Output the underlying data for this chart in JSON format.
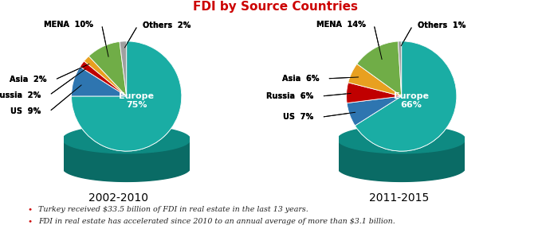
{
  "title": "FDI by Source Countries",
  "title_color": "#CC0000",
  "chart1_label": "2002-2010",
  "chart2_label": "2011-2015",
  "chart1": {
    "labels": [
      "Europe",
      "US",
      "Russia",
      "Asia",
      "MENA",
      "Others"
    ],
    "values": [
      75,
      9,
      2,
      2,
      10,
      2
    ],
    "colors": [
      "#1AADA4",
      "#2E75B0",
      "#C00000",
      "#E8A020",
      "#70AD47",
      "#A0A0A0"
    ]
  },
  "chart2": {
    "labels": [
      "Europe",
      "US",
      "Russia",
      "Asia",
      "MENA",
      "Others"
    ],
    "values": [
      66,
      7,
      6,
      6,
      14,
      1
    ],
    "colors": [
      "#1AADA4",
      "#2E75B0",
      "#C00000",
      "#E8A020",
      "#70AD47",
      "#A0A0A0"
    ]
  },
  "footnotes": [
    "Turkey received $33.5 billion of FDI in real estate in the last 13 years.",
    "FDI in real estate has accelerated since 2010 to an annual average of more than $3.1 billion."
  ],
  "footnote_color": "#222222",
  "bullet_color": "#CC0000",
  "cylinder_color": "#0E8A82",
  "cylinder_side_color": "#0A6B65"
}
